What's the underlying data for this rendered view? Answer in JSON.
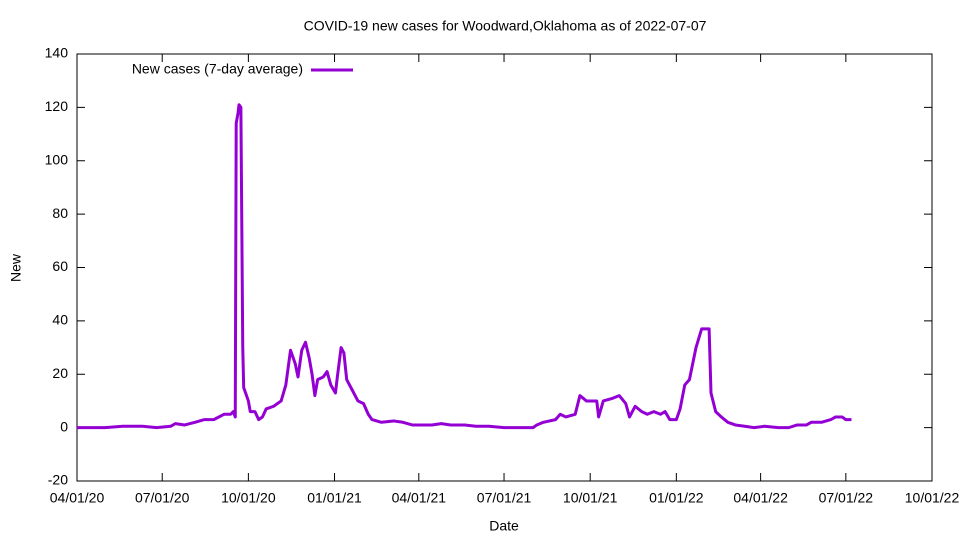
{
  "chart_data": {
    "type": "line",
    "title": "COVID-19 new cases for Woodward,Oklahoma as of 2022-07-07",
    "x_label": "Date",
    "y_label": "New",
    "x": [
      "2020-04-01",
      "2020-05-01",
      "2020-05-20",
      "2020-06-10",
      "2020-06-25",
      "2020-07-10",
      "2020-07-15",
      "2020-07-25",
      "2020-08-05",
      "2020-08-15",
      "2020-08-25",
      "2020-09-05",
      "2020-09-12",
      "2020-09-15",
      "2020-09-17",
      "2020-09-18",
      "2020-09-20",
      "2020-09-21",
      "2020-09-23",
      "2020-09-25",
      "2020-09-26",
      "2020-09-28",
      "2020-10-01",
      "2020-10-03",
      "2020-10-08",
      "2020-10-12",
      "2020-10-16",
      "2020-10-20",
      "2020-10-28",
      "2020-11-05",
      "2020-11-10",
      "2020-11-15",
      "2020-11-20",
      "2020-11-23",
      "2020-11-27",
      "2020-12-01",
      "2020-12-05",
      "2020-12-08",
      "2020-12-11",
      "2020-12-14",
      "2020-12-20",
      "2020-12-24",
      "2020-12-28",
      "2021-01-02",
      "2021-01-04",
      "2021-01-08",
      "2021-01-11",
      "2021-01-14",
      "2021-01-20",
      "2021-01-26",
      "2021-02-01",
      "2021-02-06",
      "2021-02-10",
      "2021-02-20",
      "2021-03-05",
      "2021-03-15",
      "2021-03-25",
      "2021-04-05",
      "2021-04-15",
      "2021-04-25",
      "2021-05-05",
      "2021-05-20",
      "2021-06-01",
      "2021-06-15",
      "2021-07-01",
      "2021-07-15",
      "2021-08-01",
      "2021-08-05",
      "2021-08-12",
      "2021-08-25",
      "2021-08-30",
      "2021-09-05",
      "2021-09-15",
      "2021-09-20",
      "2021-09-27",
      "2021-10-08",
      "2021-10-10",
      "2021-10-15",
      "2021-10-25",
      "2021-11-01",
      "2021-11-08",
      "2021-11-12",
      "2021-11-18",
      "2021-11-25",
      "2021-12-01",
      "2021-12-08",
      "2021-12-15",
      "2021-12-20",
      "2021-12-25",
      "2022-01-01",
      "2022-01-05",
      "2022-01-10",
      "2022-01-15",
      "2022-01-22",
      "2022-01-28",
      "2022-02-05",
      "2022-02-07",
      "2022-02-12",
      "2022-02-18",
      "2022-02-25",
      "2022-03-05",
      "2022-03-15",
      "2022-03-25",
      "2022-04-05",
      "2022-04-20",
      "2022-05-01",
      "2022-05-10",
      "2022-05-20",
      "2022-05-25",
      "2022-06-05",
      "2022-06-15",
      "2022-06-20",
      "2022-06-27",
      "2022-07-01",
      "2022-07-07"
    ],
    "series": [
      {
        "name": "New cases (7-day average)",
        "color": "#9400d3",
        "values": [
          0,
          0,
          0.5,
          0.5,
          0,
          0.5,
          1.5,
          1,
          2,
          3,
          3,
          5,
          5,
          6,
          4,
          114,
          118,
          121,
          120,
          30,
          15,
          13,
          10,
          6,
          6,
          3,
          4,
          7,
          8,
          10,
          16,
          29,
          24,
          19,
          29,
          32,
          26,
          20,
          12,
          18,
          19,
          21,
          16,
          13,
          19,
          30,
          28,
          18,
          14,
          10,
          9,
          5,
          3,
          2,
          2.5,
          2,
          1,
          1,
          1,
          1.5,
          1,
          1,
          0.5,
          0.5,
          0,
          0,
          0,
          1,
          2,
          3,
          5,
          4,
          5,
          12,
          10,
          10,
          4,
          10,
          11,
          12,
          9,
          4,
          8,
          6,
          5,
          6,
          5,
          6,
          3,
          3,
          7,
          16,
          18,
          30,
          37,
          37,
          13,
          6,
          4,
          2,
          1,
          0.5,
          0,
          0.5,
          0,
          0,
          1,
          1,
          2,
          2,
          3,
          4,
          4,
          3,
          3
        ]
      }
    ],
    "xlim": [
      "2020-04-01",
      "2022-10-01"
    ],
    "xticks": [
      {
        "value": "2020-04-01",
        "label": "04/01/20"
      },
      {
        "value": "2020-07-01",
        "label": "07/01/20"
      },
      {
        "value": "2020-10-01",
        "label": "10/01/20"
      },
      {
        "value": "2021-01-01",
        "label": "01/01/21"
      },
      {
        "value": "2021-04-01",
        "label": "04/01/21"
      },
      {
        "value": "2021-07-01",
        "label": "07/01/21"
      },
      {
        "value": "2021-10-01",
        "label": "10/01/21"
      },
      {
        "value": "2022-01-01",
        "label": "01/01/22"
      },
      {
        "value": "2022-04-01",
        "label": "04/01/22"
      },
      {
        "value": "2022-07-01",
        "label": "07/01/22"
      },
      {
        "value": "2022-10-01",
        "label": "10/01/22"
      }
    ],
    "ylim": [
      -20,
      140
    ],
    "yticks": [
      -20,
      0,
      20,
      40,
      60,
      80,
      100,
      120,
      140
    ],
    "legend": "top-left"
  }
}
